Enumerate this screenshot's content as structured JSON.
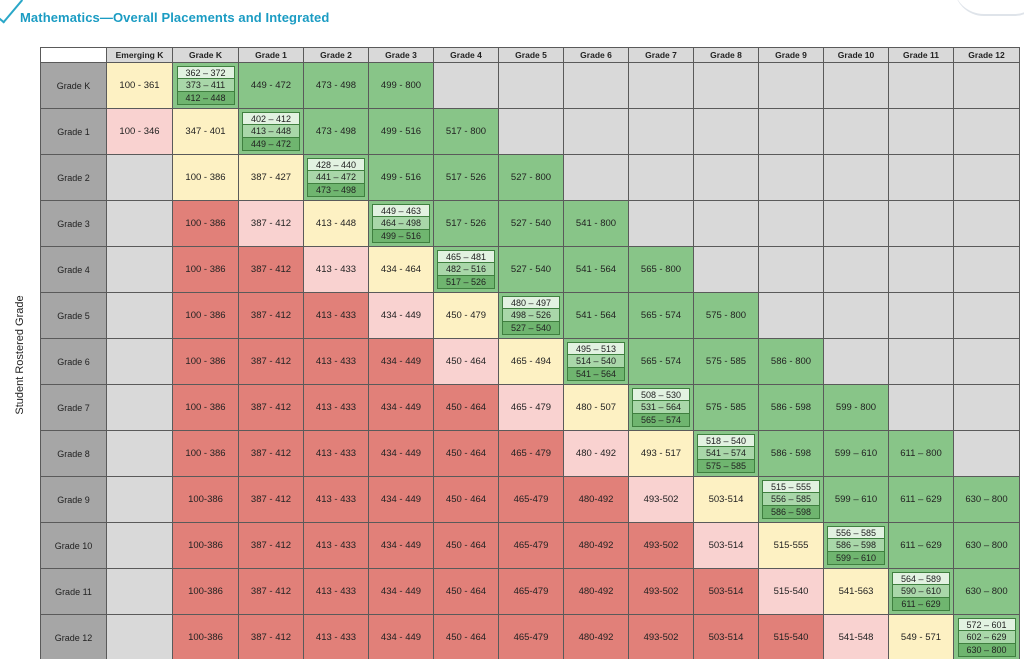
{
  "title": "Mathematics—Overall Placements and Integrated",
  "row_axis_label": "Student Rostered Grade",
  "columns": [
    "Emerging K",
    "Grade K",
    "Grade 1",
    "Grade 2",
    "Grade 3",
    "Grade 4",
    "Grade 5",
    "Grade 6",
    "Grade 7",
    "Grade 8",
    "Grade 9",
    "Grade 10",
    "Grade 11",
    "Grade 12"
  ],
  "colors": {
    "blank": "#d9d9d9",
    "green": "#88c588",
    "yellow": "#fdf1c3",
    "pink": "#f9d2d0",
    "red": "#e18079",
    "row_header": "#a6a6a6",
    "title": "#1b9cc3"
  },
  "rows": [
    {
      "label": "Grade K",
      "cells": [
        {
          "t": "yellow",
          "v": "100 - 361"
        },
        {
          "t": "stack",
          "v": [
            "362 – 372",
            "373 – 411",
            "412 – 448"
          ]
        },
        {
          "t": "green",
          "v": "449 - 472"
        },
        {
          "t": "green",
          "v": "473 - 498"
        },
        {
          "t": "green",
          "v": "499 - 800"
        },
        {
          "t": "blank"
        },
        {
          "t": "blank"
        },
        {
          "t": "blank"
        },
        {
          "t": "blank"
        },
        {
          "t": "blank"
        },
        {
          "t": "blank"
        },
        {
          "t": "blank"
        },
        {
          "t": "blank"
        },
        {
          "t": "blank"
        }
      ]
    },
    {
      "label": "Grade 1",
      "cells": [
        {
          "t": "pink",
          "v": "100 - 346"
        },
        {
          "t": "yellow",
          "v": "347 - 401"
        },
        {
          "t": "stack",
          "v": [
            "402 – 412",
            "413 – 448",
            "449 – 472"
          ]
        },
        {
          "t": "green",
          "v": "473 - 498"
        },
        {
          "t": "green",
          "v": "499 - 516"
        },
        {
          "t": "green",
          "v": "517 - 800"
        },
        {
          "t": "blank"
        },
        {
          "t": "blank"
        },
        {
          "t": "blank"
        },
        {
          "t": "blank"
        },
        {
          "t": "blank"
        },
        {
          "t": "blank"
        },
        {
          "t": "blank"
        },
        {
          "t": "blank"
        }
      ]
    },
    {
      "label": "Grade 2",
      "cells": [
        {
          "t": "blank"
        },
        {
          "t": "yellow",
          "v": "100 - 386"
        },
        {
          "t": "yellow",
          "v": "387 - 427"
        },
        {
          "t": "stack",
          "v": [
            "428 – 440",
            "441 – 472",
            "473 – 498"
          ]
        },
        {
          "t": "green",
          "v": "499 - 516"
        },
        {
          "t": "green",
          "v": "517 - 526"
        },
        {
          "t": "green",
          "v": "527 - 800"
        },
        {
          "t": "blank"
        },
        {
          "t": "blank"
        },
        {
          "t": "blank"
        },
        {
          "t": "blank"
        },
        {
          "t": "blank"
        },
        {
          "t": "blank"
        },
        {
          "t": "blank"
        }
      ]
    },
    {
      "label": "Grade 3",
      "cells": [
        {
          "t": "blank"
        },
        {
          "t": "red",
          "v": "100 - 386"
        },
        {
          "t": "pink",
          "v": "387 - 412"
        },
        {
          "t": "yellow",
          "v": "413 - 448"
        },
        {
          "t": "stack",
          "v": [
            "449 – 463",
            "464 – 498",
            "499 – 516"
          ]
        },
        {
          "t": "green",
          "v": "517 - 526"
        },
        {
          "t": "green",
          "v": "527 - 540"
        },
        {
          "t": "green",
          "v": "541 - 800"
        },
        {
          "t": "blank"
        },
        {
          "t": "blank"
        },
        {
          "t": "blank"
        },
        {
          "t": "blank"
        },
        {
          "t": "blank"
        },
        {
          "t": "blank"
        }
      ]
    },
    {
      "label": "Grade 4",
      "cells": [
        {
          "t": "blank"
        },
        {
          "t": "red",
          "v": "100 - 386"
        },
        {
          "t": "red",
          "v": "387 - 412"
        },
        {
          "t": "pink",
          "v": "413 - 433"
        },
        {
          "t": "yellow",
          "v": "434 - 464"
        },
        {
          "t": "stack",
          "v": [
            "465 – 481",
            "482 – 516",
            "517 – 526"
          ]
        },
        {
          "t": "green",
          "v": "527 - 540"
        },
        {
          "t": "green",
          "v": "541 - 564"
        },
        {
          "t": "green",
          "v": "565 - 800"
        },
        {
          "t": "blank"
        },
        {
          "t": "blank"
        },
        {
          "t": "blank"
        },
        {
          "t": "blank"
        },
        {
          "t": "blank"
        }
      ]
    },
    {
      "label": "Grade 5",
      "cells": [
        {
          "t": "blank"
        },
        {
          "t": "red",
          "v": "100 - 386"
        },
        {
          "t": "red",
          "v": "387 - 412"
        },
        {
          "t": "red",
          "v": "413 - 433"
        },
        {
          "t": "pink",
          "v": "434 - 449"
        },
        {
          "t": "yellow",
          "v": "450 - 479"
        },
        {
          "t": "stack",
          "v": [
            "480 – 497",
            "498 – 526",
            "527 – 540"
          ]
        },
        {
          "t": "green",
          "v": "541 - 564"
        },
        {
          "t": "green",
          "v": "565 - 574"
        },
        {
          "t": "green",
          "v": "575 - 800"
        },
        {
          "t": "blank"
        },
        {
          "t": "blank"
        },
        {
          "t": "blank"
        },
        {
          "t": "blank"
        }
      ]
    },
    {
      "label": "Grade 6",
      "cells": [
        {
          "t": "blank"
        },
        {
          "t": "red",
          "v": "100 - 386"
        },
        {
          "t": "red",
          "v": "387 - 412"
        },
        {
          "t": "red",
          "v": "413 - 433"
        },
        {
          "t": "red",
          "v": "434 - 449"
        },
        {
          "t": "pink",
          "v": "450 - 464"
        },
        {
          "t": "yellow",
          "v": "465 - 494"
        },
        {
          "t": "stack",
          "v": [
            "495 – 513",
            "514 – 540",
            "541 – 564"
          ]
        },
        {
          "t": "green",
          "v": "565 - 574"
        },
        {
          "t": "green",
          "v": "575 - 585"
        },
        {
          "t": "green",
          "v": "586 - 800"
        },
        {
          "t": "blank"
        },
        {
          "t": "blank"
        },
        {
          "t": "blank"
        }
      ]
    },
    {
      "label": "Grade 7",
      "cells": [
        {
          "t": "blank"
        },
        {
          "t": "red",
          "v": "100 - 386"
        },
        {
          "t": "red",
          "v": "387 - 412"
        },
        {
          "t": "red",
          "v": "413 - 433"
        },
        {
          "t": "red",
          "v": "434 - 449"
        },
        {
          "t": "red",
          "v": "450 - 464"
        },
        {
          "t": "pink",
          "v": "465 - 479"
        },
        {
          "t": "yellow",
          "v": "480 - 507"
        },
        {
          "t": "stack",
          "v": [
            "508 – 530",
            "531 – 564",
            "565 – 574"
          ]
        },
        {
          "t": "green",
          "v": "575 - 585"
        },
        {
          "t": "green",
          "v": "586 - 598"
        },
        {
          "t": "green",
          "v": "599 - 800"
        },
        {
          "t": "blank"
        },
        {
          "t": "blank"
        }
      ]
    },
    {
      "label": "Grade 8",
      "cells": [
        {
          "t": "blank"
        },
        {
          "t": "red",
          "v": "100 - 386"
        },
        {
          "t": "red",
          "v": "387 - 412"
        },
        {
          "t": "red",
          "v": "413 - 433"
        },
        {
          "t": "red",
          "v": "434 - 449"
        },
        {
          "t": "red",
          "v": "450 - 464"
        },
        {
          "t": "red",
          "v": "465 - 479"
        },
        {
          "t": "pink",
          "v": "480 - 492"
        },
        {
          "t": "yellow",
          "v": "493 - 517"
        },
        {
          "t": "stack",
          "v": [
            "518 – 540",
            "541 – 574",
            "575 – 585"
          ]
        },
        {
          "t": "green",
          "v": "586 - 598"
        },
        {
          "t": "green",
          "v": "599 – 610"
        },
        {
          "t": "green",
          "v": "611 – 800"
        },
        {
          "t": "blank"
        }
      ]
    },
    {
      "label": "Grade 9",
      "cells": [
        {
          "t": "blank"
        },
        {
          "t": "red",
          "v": "100-386"
        },
        {
          "t": "red",
          "v": "387 - 412"
        },
        {
          "t": "red",
          "v": "413 - 433"
        },
        {
          "t": "red",
          "v": "434 - 449"
        },
        {
          "t": "red",
          "v": "450 - 464"
        },
        {
          "t": "red",
          "v": "465-479"
        },
        {
          "t": "red",
          "v": "480-492"
        },
        {
          "t": "pink",
          "v": "493-502"
        },
        {
          "t": "yellow",
          "v": "503-514"
        },
        {
          "t": "stack",
          "v": [
            "515 – 555",
            "556 – 585",
            "586 – 598"
          ]
        },
        {
          "t": "green",
          "v": "599 – 610"
        },
        {
          "t": "green",
          "v": "611 – 629"
        },
        {
          "t": "green",
          "v": "630 – 800"
        }
      ]
    },
    {
      "label": "Grade 10",
      "cells": [
        {
          "t": "blank"
        },
        {
          "t": "red",
          "v": "100-386"
        },
        {
          "t": "red",
          "v": "387 - 412"
        },
        {
          "t": "red",
          "v": "413 - 433"
        },
        {
          "t": "red",
          "v": "434 - 449"
        },
        {
          "t": "red",
          "v": "450 - 464"
        },
        {
          "t": "red",
          "v": "465-479"
        },
        {
          "t": "red",
          "v": "480-492"
        },
        {
          "t": "red",
          "v": "493-502"
        },
        {
          "t": "pink",
          "v": "503-514"
        },
        {
          "t": "yellow",
          "v": "515-555"
        },
        {
          "t": "stack",
          "v": [
            "556 – 585",
            "586 – 598",
            "599 – 610"
          ]
        },
        {
          "t": "green",
          "v": "611 – 629"
        },
        {
          "t": "green",
          "v": "630 – 800"
        }
      ]
    },
    {
      "label": "Grade 11",
      "cells": [
        {
          "t": "blank"
        },
        {
          "t": "red",
          "v": "100-386"
        },
        {
          "t": "red",
          "v": "387 - 412"
        },
        {
          "t": "red",
          "v": "413 - 433"
        },
        {
          "t": "red",
          "v": "434 - 449"
        },
        {
          "t": "red",
          "v": "450 - 464"
        },
        {
          "t": "red",
          "v": "465-479"
        },
        {
          "t": "red",
          "v": "480-492"
        },
        {
          "t": "red",
          "v": "493-502"
        },
        {
          "t": "red",
          "v": "503-514"
        },
        {
          "t": "pink",
          "v": "515-540"
        },
        {
          "t": "yellow",
          "v": "541-563"
        },
        {
          "t": "stack",
          "v": [
            "564 – 589",
            "590 – 610",
            "611 – 629"
          ]
        },
        {
          "t": "green",
          "v": "630 – 800"
        }
      ]
    },
    {
      "label": "Grade 12",
      "cells": [
        {
          "t": "blank"
        },
        {
          "t": "red",
          "v": "100-386"
        },
        {
          "t": "red",
          "v": "387 - 412"
        },
        {
          "t": "red",
          "v": "413 - 433"
        },
        {
          "t": "red",
          "v": "434 - 449"
        },
        {
          "t": "red",
          "v": "450 - 464"
        },
        {
          "t": "red",
          "v": "465-479"
        },
        {
          "t": "red",
          "v": "480-492"
        },
        {
          "t": "red",
          "v": "493-502"
        },
        {
          "t": "red",
          "v": "503-514"
        },
        {
          "t": "red",
          "v": "515-540"
        },
        {
          "t": "pink",
          "v": "541-548"
        },
        {
          "t": "yellow",
          "v": "549 - 571"
        },
        {
          "t": "stack",
          "v": [
            "572 – 601",
            "602 – 629",
            "630 – 800"
          ]
        }
      ]
    }
  ]
}
